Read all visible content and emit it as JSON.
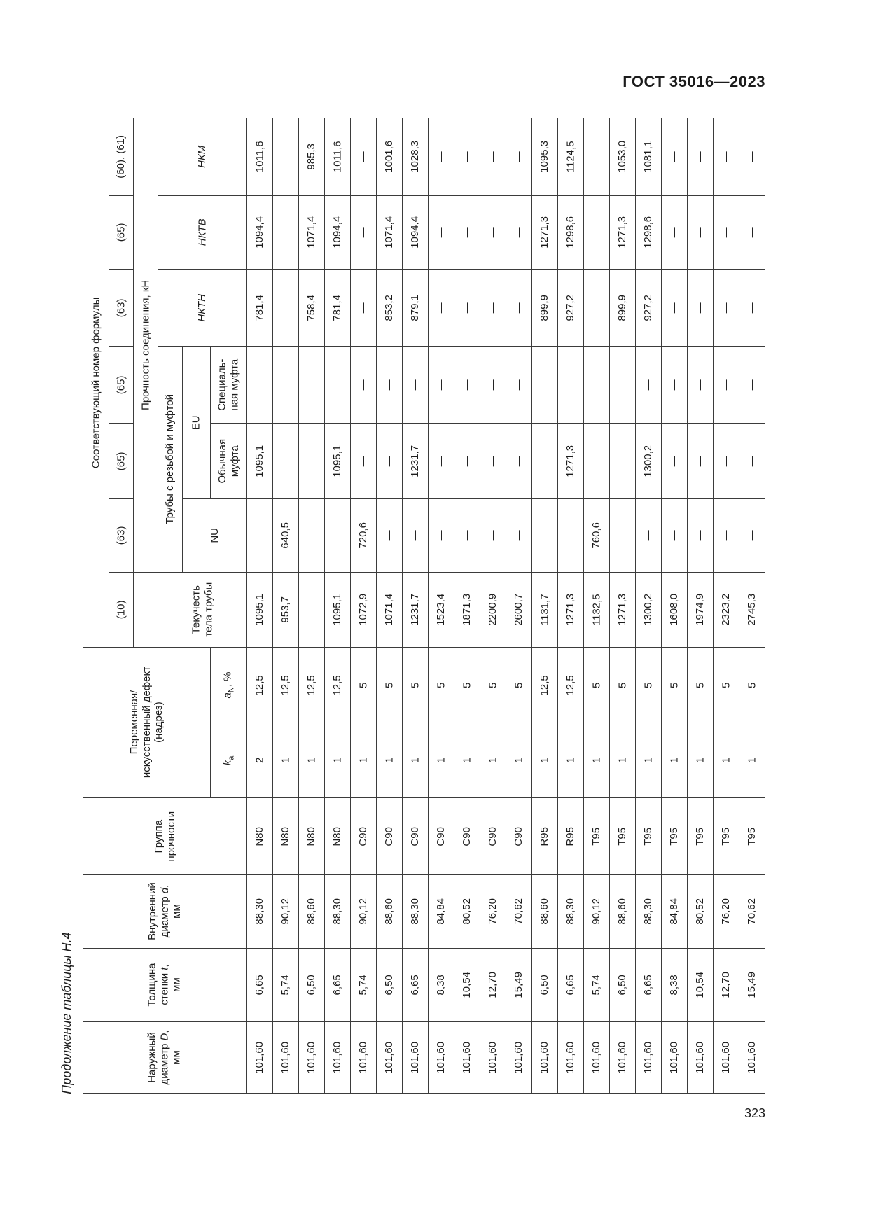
{
  "page": {
    "standard": "ГОСТ 35016—2023",
    "caption": "Продолжение таблицы Н.4",
    "number": "323"
  },
  "table": {
    "corner_header": "Соответствующий номер формулы",
    "strength_header": "Прочность соединения, кН",
    "threaded_header": "Трубы с резьбой и муфтой",
    "eu_label": "EU",
    "nu_label": "NU",
    "nkm_label": "НКМ",
    "nktv_label": "НКТВ",
    "nktn_label": "НКТН",
    "special_coupling_label": "Специаль-\nная муфта",
    "regular_coupling_label": "Обычная\nмуфта",
    "yield_label": "Текучесть\nтела трубы",
    "defect_label": "Переменная/\nискусственный дефект\n(надрез)",
    "a_n": {
      "pre": "a",
      "sub": "N",
      "post": ", %"
    },
    "k_a": {
      "pre": "k",
      "sub": "a"
    },
    "group_label": "Группа\nпрочности",
    "d_label": {
      "pre": "Внутренний\nдиаметр ",
      "var": "d",
      "post": ",\nмм"
    },
    "t_label": {
      "pre": "Толщина\nстенки ",
      "var": "t",
      "post": ",\nмм"
    },
    "D_label": {
      "pre": "Наружный\nдиаметр ",
      "var": "D",
      "post": ",\nмм"
    },
    "formula_numbers": [
      "(60), (61)",
      "(65)",
      "(63)",
      "(65)",
      "(65)",
      "(63)",
      "(10)"
    ],
    "rows": [
      {
        "key": "nkm",
        "values": [
          "1011,6",
          "—",
          "985,3",
          "1011,6",
          "—",
          "1001,6",
          "1028,3",
          "—",
          "—",
          "—",
          "—",
          "1095,3",
          "1124,5",
          "—",
          "1053,0",
          "1081,1",
          "—",
          "—",
          "—",
          "—"
        ]
      },
      {
        "key": "nktv",
        "values": [
          "1094,4",
          "—",
          "1071,4",
          "1094,4",
          "—",
          "1071,4",
          "1094,4",
          "—",
          "—",
          "—",
          "—",
          "1271,3",
          "1298,6",
          "—",
          "1271,3",
          "1298,6",
          "—",
          "—",
          "—",
          "—"
        ]
      },
      {
        "key": "nktn",
        "values": [
          "781,4",
          "—",
          "758,4",
          "781,4",
          "—",
          "853,2",
          "879,1",
          "—",
          "—",
          "—",
          "—",
          "899,9",
          "927,2",
          "—",
          "899,9",
          "927,2",
          "—",
          "—",
          "—",
          "—"
        ]
      },
      {
        "key": "special-coupling",
        "values": [
          "—",
          "—",
          "—",
          "—",
          "—",
          "—",
          "—",
          "—",
          "—",
          "—",
          "—",
          "—",
          "—",
          "—",
          "—",
          "—",
          "—",
          "—",
          "—",
          "—"
        ]
      },
      {
        "key": "regular-coupling",
        "values": [
          "1095,1",
          "—",
          "—",
          "1095,1",
          "—",
          "—",
          "1231,7",
          "—",
          "—",
          "—",
          "—",
          "—",
          "1271,3",
          "—",
          "—",
          "1300,2",
          "—",
          "—",
          "—",
          "—"
        ]
      },
      {
        "key": "nu",
        "values": [
          "—",
          "640,5",
          "—",
          "—",
          "720,6",
          "—",
          "—",
          "—",
          "—",
          "—",
          "—",
          "—",
          "—",
          "760,6",
          "—",
          "—",
          "—",
          "—",
          "—",
          "—"
        ]
      },
      {
        "key": "yield",
        "values": [
          "1095,1",
          "953,7",
          "—",
          "1095,1",
          "1072,9",
          "1071,4",
          "1231,7",
          "1523,4",
          "1871,3",
          "2200,9",
          "2600,7",
          "1131,7",
          "1271,3",
          "1132,5",
          "1271,3",
          "1300,2",
          "1608,0",
          "1974,9",
          "2323,2",
          "2745,3"
        ]
      },
      {
        "key": "a-n",
        "values": [
          "12,5",
          "12,5",
          "12,5",
          "12,5",
          "5",
          "5",
          "5",
          "5",
          "5",
          "5",
          "5",
          "12,5",
          "12,5",
          "5",
          "5",
          "5",
          "5",
          "5",
          "5",
          "5"
        ]
      },
      {
        "key": "k-a",
        "values": [
          "2",
          "1",
          "1",
          "1",
          "1",
          "1",
          "1",
          "1",
          "1",
          "1",
          "1",
          "1",
          "1",
          "1",
          "1",
          "1",
          "1",
          "1",
          "1",
          "1"
        ]
      },
      {
        "key": "group",
        "values": [
          "N80",
          "N80",
          "N80",
          "N80",
          "C90",
          "C90",
          "C90",
          "C90",
          "C90",
          "C90",
          "C90",
          "R95",
          "R95",
          "T95",
          "T95",
          "T95",
          "T95",
          "T95",
          "T95",
          "T95"
        ]
      },
      {
        "key": "d-inner",
        "values": [
          "88,30",
          "90,12",
          "88,60",
          "88,30",
          "90,12",
          "88,60",
          "88,30",
          "84,84",
          "80,52",
          "76,20",
          "70,62",
          "88,60",
          "88,30",
          "90,12",
          "88,60",
          "88,30",
          "84,84",
          "80,52",
          "76,20",
          "70,62"
        ]
      },
      {
        "key": "t-wall",
        "values": [
          "6,65",
          "5,74",
          "6,50",
          "6,65",
          "5,74",
          "6,50",
          "6,65",
          "8,38",
          "10,54",
          "12,70",
          "15,49",
          "6,50",
          "6,65",
          "5,74",
          "6,50",
          "6,65",
          "8,38",
          "10,54",
          "12,70",
          "15,49"
        ]
      },
      {
        "key": "d-outer",
        "values": [
          "101,60",
          "101,60",
          "101,60",
          "101,60",
          "101,60",
          "101,60",
          "101,60",
          "101,60",
          "101,60",
          "101,60",
          "101,60",
          "101,60",
          "101,60",
          "101,60",
          "101,60",
          "101,60",
          "101,60",
          "101,60",
          "101,60",
          "101,60"
        ]
      }
    ]
  }
}
